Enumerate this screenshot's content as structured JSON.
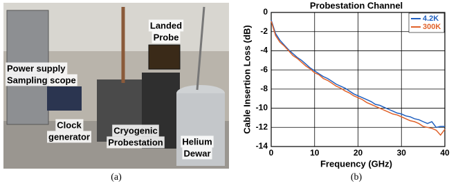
{
  "photo": {
    "labels": [
      [
        "Landed",
        "Probe"
      ],
      [
        "Power supply",
        "Sampling scope"
      ],
      [
        "Clock",
        "generator"
      ],
      [
        "Cryogenic",
        "Probestation"
      ],
      [
        "Helium",
        "Dewar"
      ]
    ],
    "caption": "(a)"
  },
  "chart_data": {
    "type": "line",
    "title": "Probestation Channel",
    "xlabel": "Frequency (GHz)",
    "ylabel": "Cable Insertion Loss (dB)",
    "x": [
      0,
      1,
      2,
      3,
      4,
      5,
      6,
      7,
      8,
      9,
      10,
      11,
      12,
      13,
      14,
      15,
      16,
      17,
      18,
      19,
      20,
      21,
      22,
      23,
      24,
      25,
      26,
      27,
      28,
      29,
      30,
      31,
      32,
      33,
      34,
      35,
      36,
      37,
      38,
      39,
      40
    ],
    "series": [
      {
        "name": "4.2K",
        "color": "#1f5fbf",
        "values": [
          -0.8,
          -2.2,
          -2.9,
          -3.4,
          -3.9,
          -4.3,
          -4.7,
          -5.0,
          -5.4,
          -5.8,
          -6.1,
          -6.4,
          -6.7,
          -6.9,
          -7.2,
          -7.5,
          -7.7,
          -7.9,
          -8.2,
          -8.5,
          -8.7,
          -8.9,
          -9.1,
          -9.3,
          -9.6,
          -9.7,
          -9.9,
          -10.1,
          -10.3,
          -10.5,
          -10.6,
          -10.8,
          -10.9,
          -11.1,
          -11.2,
          -11.4,
          -11.6,
          -11.4,
          -12.0,
          -11.9,
          -11.9
        ]
      },
      {
        "name": "300K",
        "color": "#e0622a",
        "values": [
          -0.9,
          -2.4,
          -3.1,
          -3.5,
          -4.0,
          -4.5,
          -4.8,
          -5.2,
          -5.6,
          -5.9,
          -6.3,
          -6.5,
          -6.9,
          -7.1,
          -7.4,
          -7.7,
          -7.9,
          -8.2,
          -8.4,
          -8.7,
          -8.9,
          -9.1,
          -9.4,
          -9.6,
          -9.8,
          -10.0,
          -10.2,
          -10.4,
          -10.6,
          -10.7,
          -10.9,
          -11.1,
          -11.3,
          -11.4,
          -11.6,
          -11.9,
          -12.0,
          -12.1,
          -12.3,
          -12.8,
          -12.2
        ]
      }
    ],
    "xlim": [
      0,
      40
    ],
    "xticks": [
      0,
      10,
      20,
      30,
      40
    ],
    "ylim": [
      -14,
      0
    ],
    "yticks": [
      0,
      -2,
      -4,
      -6,
      -8,
      -10,
      -12,
      -14
    ],
    "grid": true,
    "legend": "top-right",
    "caption": "(b)"
  }
}
